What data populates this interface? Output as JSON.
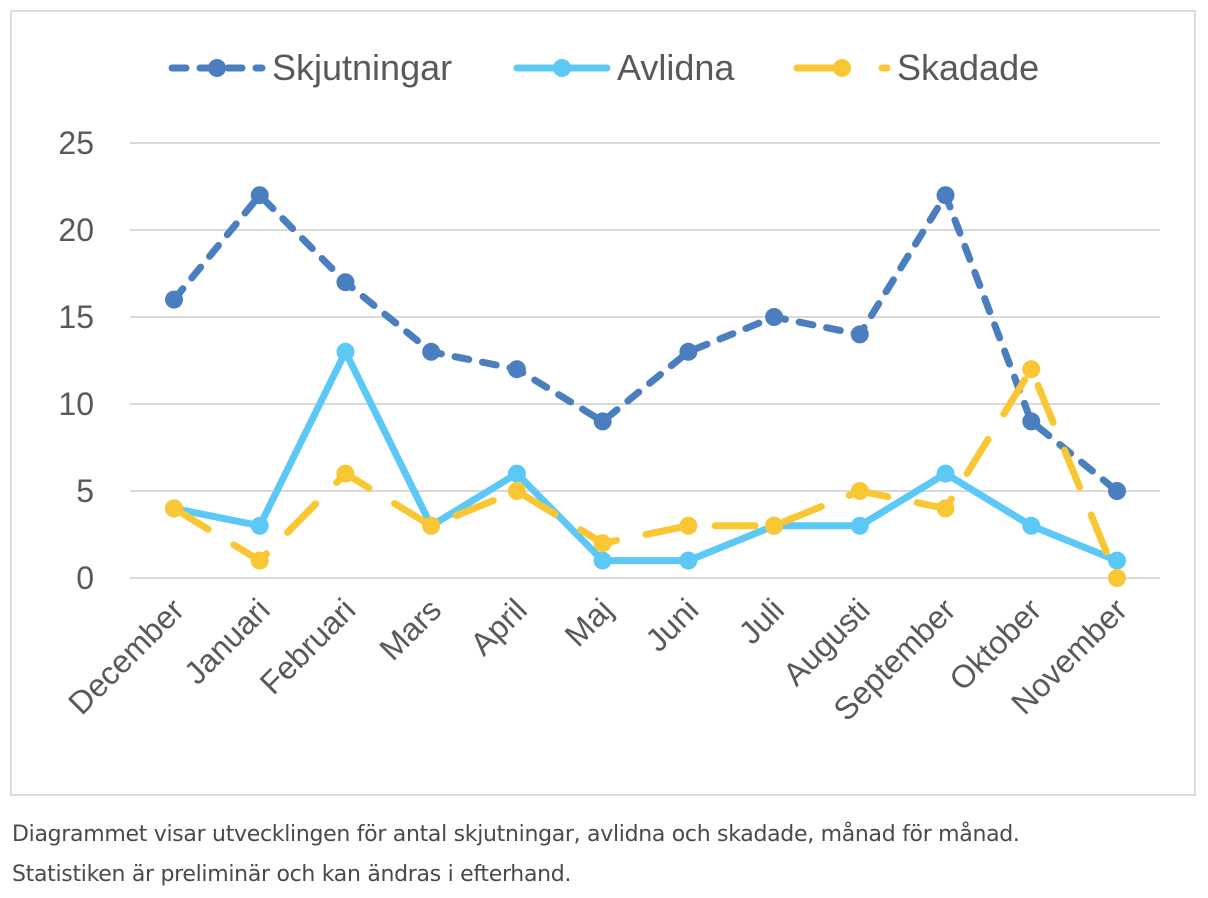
{
  "chart_data": {
    "type": "line",
    "title": "",
    "xlabel": "",
    "ylabel": "",
    "ylim": [
      0,
      25
    ],
    "yticks": [
      0,
      5,
      10,
      15,
      20,
      25
    ],
    "grid": true,
    "legend_position": "top-center",
    "categories": [
      "December",
      "Januari",
      "Februari",
      "Mars",
      "April",
      "Maj",
      "Juni",
      "Juli",
      "Augusti",
      "September",
      "Oktober",
      "November"
    ],
    "series": [
      {
        "name": "Skjutningar",
        "color": "#4a7ebf",
        "line_style": "dashed",
        "values": [
          16,
          22,
          17,
          13,
          12,
          9,
          13,
          15,
          14,
          22,
          9,
          5
        ]
      },
      {
        "name": "Avlidna",
        "color": "#5bc8f5",
        "line_style": "solid",
        "values": [
          4,
          3,
          13,
          3,
          6,
          1,
          1,
          3,
          3,
          6,
          3,
          1
        ]
      },
      {
        "name": "Skadade",
        "color": "#f9c733",
        "line_style": "long-dash",
        "values": [
          4,
          1,
          6,
          3,
          5,
          2,
          3,
          3,
          5,
          4,
          12,
          0
        ]
      }
    ]
  },
  "caption": {
    "line1": "Diagrammet visar utvecklingen för antal skjutningar, avlidna och skadade, månad för månad.",
    "line2": "Statistiken är preliminär och kan ändras i efterhand."
  }
}
